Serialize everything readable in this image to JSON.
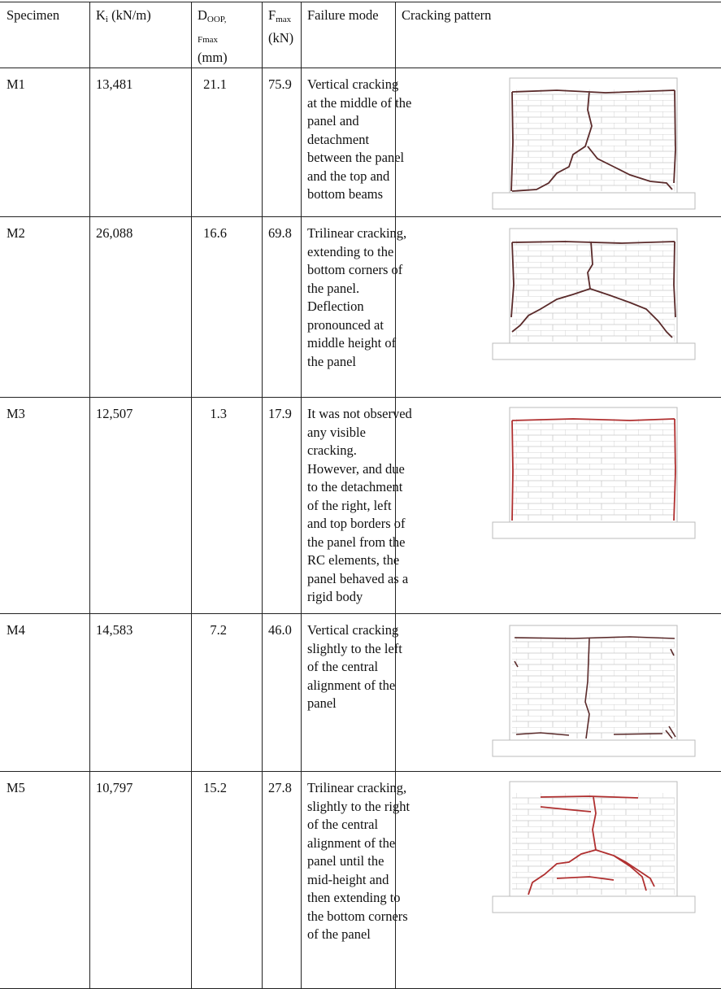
{
  "table": {
    "header": [
      [
        [
          {
            "text": "Specimen"
          }
        ]
      ],
      [
        [
          {
            "text": "K"
          },
          {
            "text": "i",
            "sub": true
          },
          {
            "text": " (kN/m)"
          }
        ]
      ],
      [
        [
          {
            "text": "D"
          },
          {
            "text": "OOP,",
            "sub": true
          }
        ],
        [
          {
            "text": "Fmax",
            "small": true
          }
        ],
        [
          {
            "text": "(mm)"
          }
        ]
      ],
      [
        [
          {
            "text": "F"
          },
          {
            "text": "max",
            "sub": true
          }
        ],
        [
          {
            "text": "(kN)"
          }
        ]
      ],
      [
        [
          {
            "text": "Failure mode"
          }
        ]
      ],
      [
        [
          {
            "text": "Cracking pattern"
          }
        ]
      ]
    ],
    "rows": [
      {
        "specimen": "M1",
        "ki": "13,481",
        "d": "21.1",
        "f": "75.9",
        "failure": [
          "Vertical cracking",
          "at the middle of the",
          "panel and",
          "detachment",
          "between the panel",
          "and the top and",
          "bottom beams"
        ]
      },
      {
        "specimen": "M2",
        "ki": "26,088",
        "d": "16.6",
        "f": "69.8",
        "failure": [
          "Trilinear cracking,",
          "extending to the",
          "bottom corners of",
          "the panel.",
          "Deflection",
          "pronounced at",
          "middle height of",
          "the panel"
        ]
      },
      {
        "specimen": "M3",
        "ki": "12,507",
        "d": "1.3",
        "f": "17.9",
        "failure": [
          "It was not observed",
          "any visible",
          "cracking.",
          "However, and due",
          "to the detachment",
          "of the right, left",
          "and top borders of",
          "the panel from the",
          "RC elements, the",
          "panel behaved as a",
          "rigid body"
        ]
      },
      {
        "specimen": "M4",
        "ki": "14,583",
        "d": "7.2",
        "f": "46.0",
        "failure": [
          "Vertical cracking",
          "slightly to the left",
          "of the central",
          "alignment of the",
          "panel"
        ]
      },
      {
        "specimen": "M5",
        "ki": "10,797",
        "d": "15.2",
        "f": "27.8",
        "failure": [
          "Trilinear cracking,",
          "slightly to the right",
          "of the central",
          "alignment of the",
          "panel until the",
          "mid-height and",
          "then extending to",
          "the bottom corners",
          "of the panel"
        ]
      }
    ]
  }
}
